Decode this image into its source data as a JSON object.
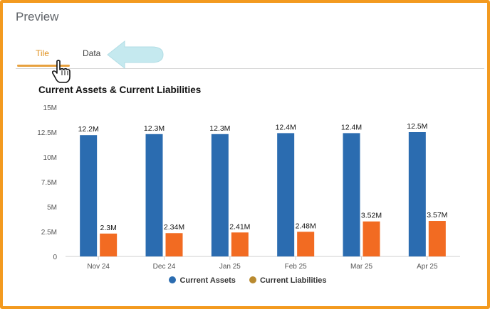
{
  "preview": {
    "title": "Preview"
  },
  "tabs": [
    {
      "label": "Tile"
    },
    {
      "label": "Data"
    }
  ],
  "chart_data": {
    "type": "bar",
    "title": "Current Assets & Current Liabilities",
    "categories": [
      "Nov 24",
      "Dec 24",
      "Jan 25",
      "Feb 25",
      "Mar 25",
      "Apr 25"
    ],
    "series": [
      {
        "name": "Current Assets",
        "color": "#2b6cb0",
        "values": [
          12.2,
          12.3,
          12.3,
          12.4,
          12.4,
          12.5
        ],
        "labels": [
          "12.2M",
          "12.3M",
          "12.3M",
          "12.4M",
          "12.4M",
          "12.5M"
        ]
      },
      {
        "name": "Current Liabilities",
        "color": "#f26b22",
        "values": [
          2.3,
          2.34,
          2.41,
          2.48,
          3.52,
          3.57
        ],
        "labels": [
          "2.3M",
          "2.34M",
          "2.41M",
          "2.48M",
          "3.52M",
          "3.57M"
        ]
      }
    ],
    "yticks": [
      "0",
      "2.5M",
      "5M",
      "7.5M",
      "10M",
      "12.5M",
      "15M"
    ],
    "ylim": [
      0,
      15
    ],
    "grid": false,
    "legend_position": "bottom"
  },
  "colors": {
    "frame": "#f39a1f",
    "active_tab": "#e0901c",
    "arrow": "#bfe8ee"
  }
}
